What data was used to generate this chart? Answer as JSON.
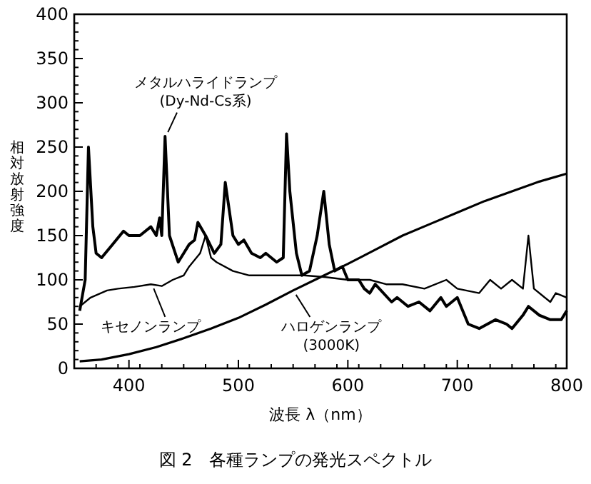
{
  "chart_data": {
    "type": "line",
    "xlabel": "波長 λ（nm）",
    "ylabel": "相対放射強度",
    "annotations": [
      "図 2　各種ランプの発光スペクトル"
    ],
    "xlim": [
      350,
      800
    ],
    "xticks": [
      400,
      500,
      600,
      700,
      800
    ],
    "ylim": [
      0,
      400
    ],
    "yticks": [
      0,
      50,
      100,
      150,
      200,
      250,
      300,
      350,
      400
    ],
    "grid": false,
    "legend": "bottom",
    "series": [
      {
        "name": "メタルハライドランプ (Dy-Nd-Cs系)",
        "color": "#000000",
        "x": [
          355,
          360,
          363,
          367,
          370,
          375,
          385,
          395,
          400,
          410,
          420,
          425,
          428,
          430,
          433,
          437,
          445,
          455,
          460,
          463,
          470,
          478,
          484,
          488,
          495,
          500,
          505,
          512,
          520,
          525,
          535,
          541,
          544,
          547,
          553,
          558,
          565,
          572,
          578,
          583,
          588,
          595,
          600,
          610,
          615,
          620,
          625,
          640,
          645,
          655,
          665,
          675,
          685,
          690,
          700,
          705,
          710,
          720,
          735,
          745,
          750,
          760,
          765,
          775,
          785,
          795,
          800
        ],
        "values": [
          65,
          100,
          250,
          160,
          130,
          125,
          140,
          155,
          150,
          150,
          160,
          150,
          170,
          150,
          262,
          150,
          120,
          140,
          145,
          165,
          150,
          130,
          140,
          210,
          150,
          140,
          145,
          130,
          125,
          130,
          120,
          125,
          265,
          200,
          130,
          105,
          110,
          150,
          200,
          140,
          110,
          115,
          100,
          100,
          90,
          85,
          95,
          75,
          80,
          70,
          75,
          65,
          80,
          70,
          80,
          65,
          50,
          45,
          55,
          50,
          45,
          60,
          70,
          60,
          55,
          55,
          65
        ]
      },
      {
        "name": "キセノンランプ",
        "color": "#000000",
        "x": [
          355,
          365,
          380,
          390,
          405,
          420,
          430,
          440,
          450,
          455,
          465,
          470,
          475,
          480,
          495,
          510,
          530,
          560,
          580,
          600,
          620,
          635,
          650,
          670,
          690,
          700,
          720,
          730,
          740,
          750,
          760,
          765,
          770,
          785,
          790,
          800
        ],
        "values": [
          70,
          80,
          88,
          90,
          92,
          95,
          93,
          100,
          105,
          115,
          130,
          150,
          125,
          120,
          110,
          105,
          105,
          105,
          103,
          100,
          100,
          95,
          95,
          90,
          100,
          90,
          85,
          100,
          90,
          100,
          90,
          150,
          90,
          75,
          85,
          80
        ]
      },
      {
        "name": "ハロゲンランプ (3000K)",
        "color": "#000000",
        "x": [
          355,
          375,
          400,
          425,
          450,
          475,
          500,
          525,
          550,
          575,
          600,
          625,
          650,
          675,
          700,
          725,
          750,
          775,
          800
        ],
        "values": [
          8,
          10,
          16,
          24,
          34,
          45,
          57,
          72,
          88,
          103,
          118,
          134,
          150,
          163,
          176,
          189,
          200,
          211,
          220
        ]
      }
    ]
  }
}
